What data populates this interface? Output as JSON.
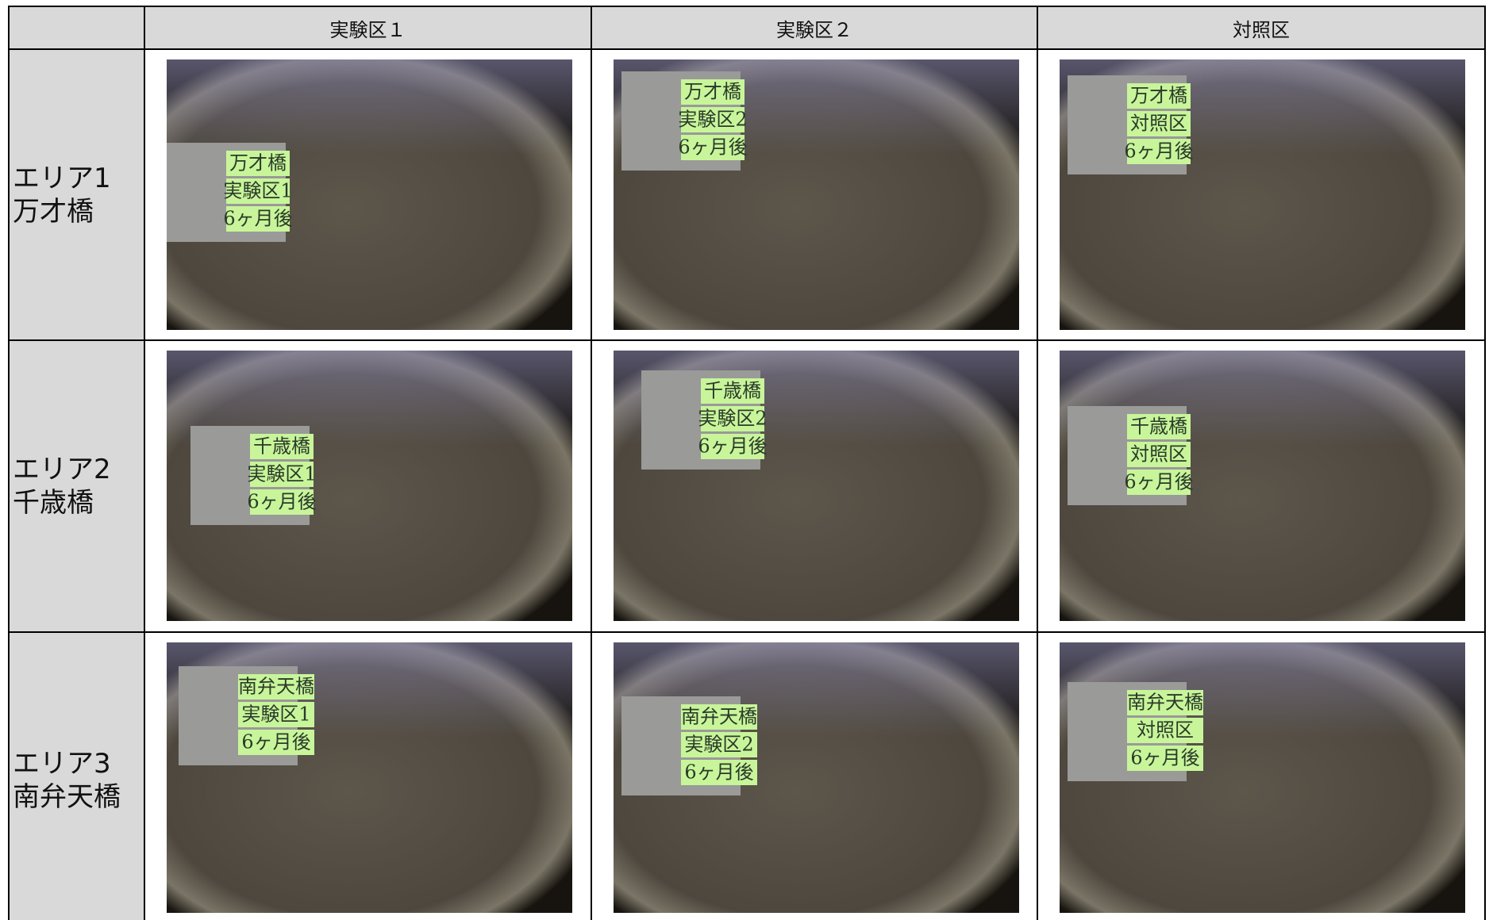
{
  "table": {
    "columns": [
      "実験区１",
      "実験区２",
      "対照区"
    ],
    "rows": [
      {
        "label": [
          "エリア1",
          "万才橋"
        ],
        "photos": [
          {
            "sign": [
              "万才橋",
              "実験区1",
              "6ヶ月後"
            ]
          },
          {
            "sign": [
              "万才橋",
              "実験区2",
              "6ヶ月後"
            ]
          },
          {
            "sign": [
              "万才橋",
              "対照区",
              "6ヶ月後"
            ]
          }
        ]
      },
      {
        "label": [
          "エリア2",
          "千歳橋"
        ],
        "photos": [
          {
            "sign": [
              "千歳橋",
              "実験区1",
              "6ヶ月後"
            ]
          },
          {
            "sign": [
              "千歳橋",
              "実験区2",
              "6ヶ月後"
            ]
          },
          {
            "sign": [
              "千歳橋",
              "対照区",
              "6ヶ月後"
            ]
          }
        ]
      },
      {
        "label": [
          "エリア3",
          "南弁天橋"
        ],
        "photos": [
          {
            "sign": [
              "南弁天橋",
              "実験区1",
              "6ヶ月後"
            ]
          },
          {
            "sign": [
              "南弁天橋",
              "実験区2",
              "6ヶ月後"
            ]
          },
          {
            "sign": [
              "南弁天橋",
              "対照区",
              "6ヶ月後"
            ]
          }
        ]
      }
    ]
  }
}
